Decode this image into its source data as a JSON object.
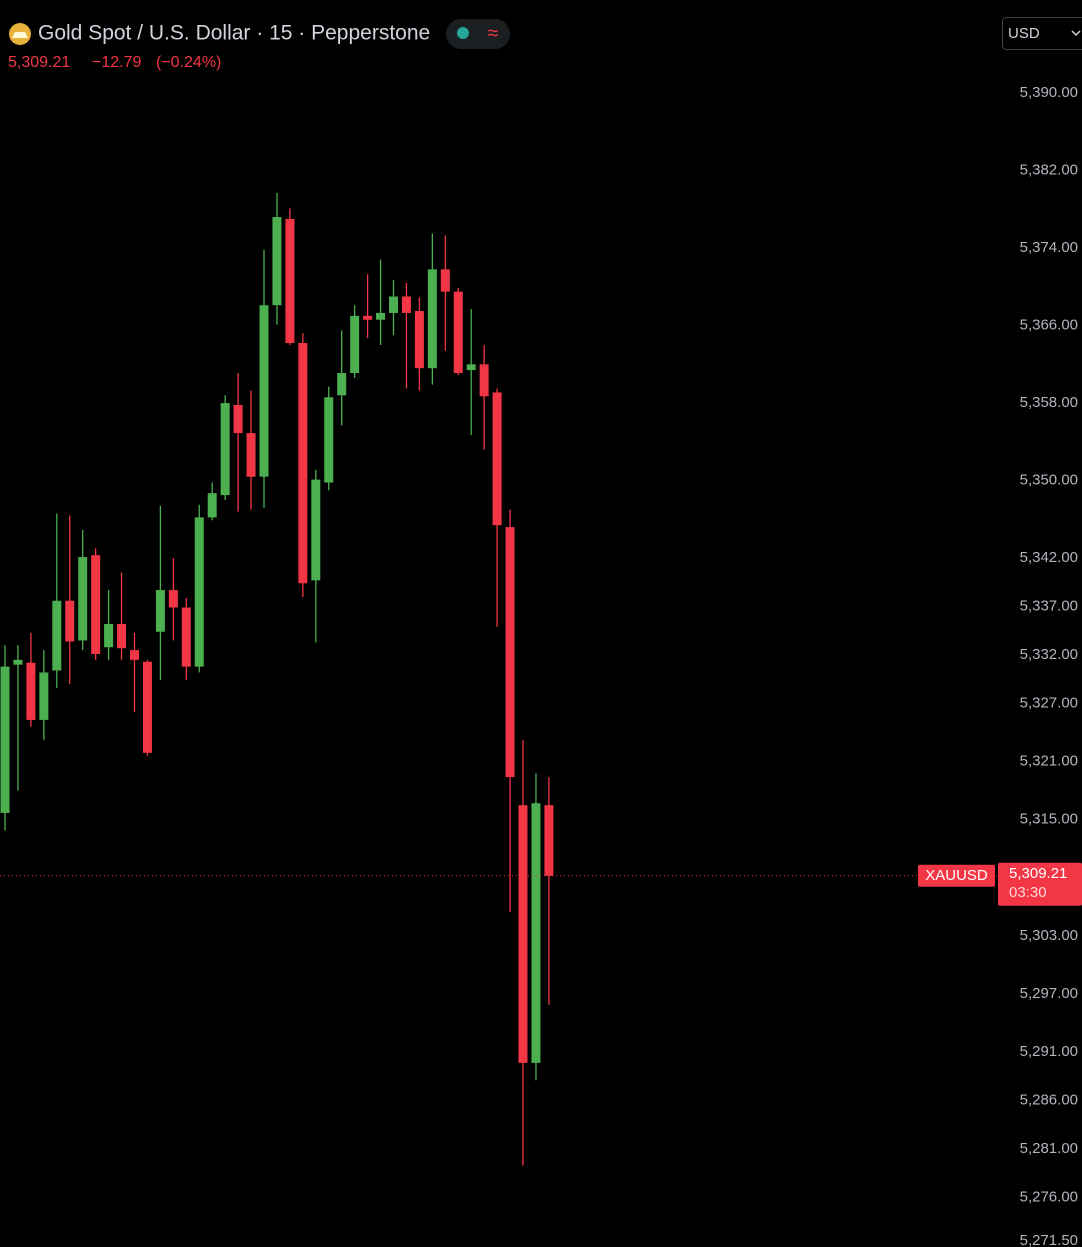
{
  "chart_data": {
    "type": "candlestick",
    "title": "Gold Spot / U.S. Dollar · 15 · Pepperstone",
    "quote": {
      "price": "5,309.21",
      "change": "−12.79",
      "change_pct": "(−0.24%)"
    },
    "currency": "USD",
    "up_color": "#4caf50",
    "down_color": "#f23645",
    "open": [
      5315.7,
      5331.0,
      5331.2,
      5325.3,
      5330.4,
      5337.6,
      5333.5,
      5342.3,
      5332.8,
      5335.2,
      5332.5,
      5331.3,
      5334.4,
      5338.7,
      5336.9,
      5330.8,
      5346.2,
      5348.5,
      5357.8,
      5354.9,
      5350.4,
      5368.1,
      5377.0,
      5364.2,
      5339.7,
      5349.8,
      5358.8,
      5361.1,
      5367.0,
      5366.6,
      5367.3,
      5369.0,
      5367.5,
      5361.6,
      5371.8,
      5369.5,
      5361.4,
      5362.0,
      5359.1,
      5345.2,
      5316.5,
      5289.9,
      5316.5
    ],
    "high": [
      5333.0,
      5333.0,
      5334.3,
      5332.5,
      5346.6,
      5346.4,
      5344.9,
      5343.0,
      5338.7,
      5340.5,
      5334.3,
      5331.5,
      5347.4,
      5342.0,
      5337.9,
      5347.5,
      5349.8,
      5358.8,
      5361.1,
      5359.3,
      5373.8,
      5379.7,
      5378.1,
      5365.2,
      5351.1,
      5359.7,
      5365.5,
      5368.1,
      5371.3,
      5372.8,
      5370.7,
      5370.4,
      5368.9,
      5375.5,
      5375.3,
      5369.9,
      5367.7,
      5364.0,
      5359.5,
      5347.0,
      5323.2,
      5319.8,
      5319.4
    ],
    "low": [
      5313.9,
      5318.0,
      5324.6,
      5323.2,
      5328.6,
      5329.0,
      5332.5,
      5331.5,
      5331.5,
      5331.5,
      5326.1,
      5321.6,
      5329.4,
      5333.5,
      5329.4,
      5330.2,
      5345.9,
      5348.0,
      5346.8,
      5347.0,
      5347.2,
      5366.1,
      5364.0,
      5338.0,
      5333.3,
      5349.0,
      5355.7,
      5360.6,
      5364.7,
      5364.0,
      5365.0,
      5359.5,
      5359.3,
      5359.9,
      5363.4,
      5360.9,
      5354.7,
      5353.2,
      5334.9,
      5305.5,
      5279.3,
      5288.1,
      5295.9
    ],
    "close": [
      5330.8,
      5331.5,
      5325.3,
      5330.2,
      5337.6,
      5333.4,
      5342.1,
      5332.1,
      5335.2,
      5332.7,
      5331.5,
      5321.9,
      5338.7,
      5336.9,
      5330.8,
      5346.2,
      5348.7,
      5358.0,
      5354.9,
      5350.4,
      5368.1,
      5377.2,
      5364.2,
      5339.4,
      5350.1,
      5358.6,
      5361.1,
      5367.0,
      5366.6,
      5367.3,
      5369.0,
      5367.3,
      5361.6,
      5371.8,
      5369.5,
      5361.1,
      5362.0,
      5358.7,
      5345.4,
      5319.4,
      5289.9,
      5316.7,
      5309.21
    ],
    "price_line": {
      "symbol": "XAUUSD",
      "value": 5309.21,
      "label": "5,309.21",
      "countdown": "03:30"
    },
    "ylim": [
      5270.9,
      5399.6
    ],
    "yticks": [
      {
        "value": 5390,
        "label": "5,390.00"
      },
      {
        "value": 5382,
        "label": "5,382.00"
      },
      {
        "value": 5374,
        "label": "5,374.00"
      },
      {
        "value": 5366,
        "label": "5,366.00"
      },
      {
        "value": 5358,
        "label": "5,358.00"
      },
      {
        "value": 5350,
        "label": "5,350.00"
      },
      {
        "value": 5342,
        "label": "5,342.00"
      },
      {
        "value": 5337,
        "label": "5,337.00"
      },
      {
        "value": 5332,
        "label": "5,332.00"
      },
      {
        "value": 5327,
        "label": "5,327.00"
      },
      {
        "value": 5321,
        "label": "5,321.00"
      },
      {
        "value": 5315,
        "label": "5,315.00"
      },
      {
        "value": 5303,
        "label": "5,303.00"
      },
      {
        "value": 5297,
        "label": "5,297.00"
      },
      {
        "value": 5291,
        "label": "5,291.00"
      },
      {
        "value": 5286,
        "label": "5,286.00"
      },
      {
        "value": 5281,
        "label": "5,281.00"
      },
      {
        "value": 5276,
        "label": "5,276.00"
      },
      {
        "value": 5271.5,
        "label": "5,271.50"
      }
    ]
  }
}
